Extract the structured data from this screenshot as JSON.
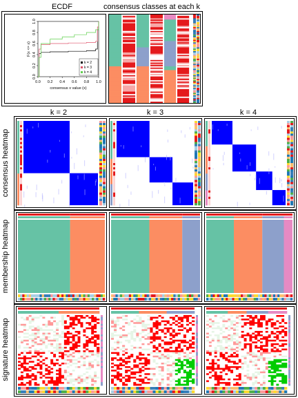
{
  "titles": {
    "ecdf": "ECDF",
    "consensus_classes": "consensus classes at each k",
    "k2": "k = 2",
    "k3": "k = 3",
    "k4": "k = 4"
  },
  "row_labels": {
    "consensus": "consensus heatmap",
    "membership": "membership heatmap",
    "signature": "signature heatmap"
  },
  "colors": {
    "class1": "#66C2A5",
    "class2": "#FC8D62",
    "class3": "#8DA0CB",
    "class4": "#E78AC3",
    "consensus_high": "#0000FF",
    "signature_high": "#FF0000",
    "signature_low": "#00CC00"
  },
  "chart_data": [
    {
      "type": "line",
      "panel": "ECDF",
      "xlabel": "consensus x value (x)",
      "ylabel": "F(x <= x)",
      "xlim": [
        0,
        1
      ],
      "ylim": [
        0,
        1
      ],
      "xticks": [
        "0.0",
        "0.2",
        "0.4",
        "0.6",
        "0.8",
        "1.0"
      ],
      "yticks": [
        "0.0",
        "0.2",
        "0.4",
        "0.6",
        "0.8",
        "1.0"
      ],
      "legend": {
        "placement": "bottom-right",
        "entries": [
          "k = 2",
          "k = 3",
          "k = 4"
        ]
      },
      "series": [
        {
          "name": "k = 2",
          "color": "#000000",
          "x": [
            0,
            0.02,
            0.05,
            0.2,
            0.5,
            0.8,
            0.95,
            0.98,
            1.0
          ],
          "y": [
            0,
            0.42,
            0.44,
            0.45,
            0.46,
            0.47,
            0.5,
            0.85,
            1.0
          ]
        },
        {
          "name": "k = 3",
          "color": "#DF536B",
          "x": [
            0,
            0.02,
            0.05,
            0.2,
            0.5,
            0.8,
            0.95,
            0.98,
            1.0
          ],
          "y": [
            0,
            0.5,
            0.58,
            0.6,
            0.61,
            0.62,
            0.64,
            0.9,
            1.0
          ]
        },
        {
          "name": "k = 4",
          "color": "#61D04F",
          "x": [
            0,
            0.02,
            0.05,
            0.2,
            0.4,
            0.6,
            0.8,
            0.95,
            1.0
          ],
          "y": [
            0,
            0.35,
            0.6,
            0.68,
            0.72,
            0.76,
            0.8,
            0.85,
            1.0
          ]
        }
      ]
    },
    {
      "type": "heatmap",
      "panel": "consensus classes at each k",
      "columns": [
        "k = 2",
        "k = 3",
        "k = 4"
      ]
    },
    {
      "type": "heatmap",
      "panel": "consensus heatmap",
      "k": [
        2,
        3,
        4
      ],
      "blocks": [
        [
          0.62,
          0.38
        ],
        [
          0.43,
          0.3,
          0.27
        ],
        [
          0.28,
          0.32,
          0.22,
          0.18
        ]
      ]
    },
    {
      "type": "heatmap",
      "panel": "membership heatmap",
      "k": [
        2,
        3,
        4
      ],
      "blocks": [
        [
          0.6,
          0.4
        ],
        [
          0.43,
          0.37,
          0.2
        ],
        [
          0.32,
          0.33,
          0.25,
          0.1
        ]
      ]
    },
    {
      "type": "heatmap",
      "panel": "signature heatmap",
      "k": [
        2,
        3,
        4
      ]
    }
  ]
}
